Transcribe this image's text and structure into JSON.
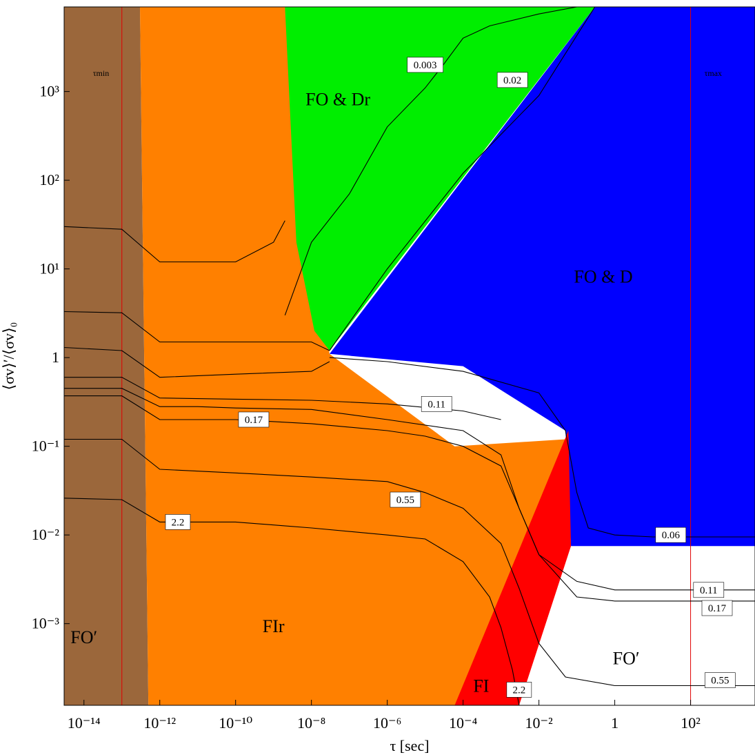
{
  "chart_data": {
    "type": "contour",
    "xlabel": "τ [sec]",
    "ylabel": "⟨σv⟩′/⟨σv⟩₀",
    "xscale": "log",
    "yscale": "log",
    "xlim": [
      3e-15,
      5000
    ],
    "ylim": [
      0.00012,
      9000
    ],
    "x_ticks": [
      {
        "value": 1e-14,
        "label": "10⁻¹⁴"
      },
      {
        "value": 1e-12,
        "label": "10⁻¹²"
      },
      {
        "value": 1e-10,
        "label": "10⁻¹⁰"
      },
      {
        "value": 1e-08,
        "label": "10⁻⁸"
      },
      {
        "value": 1e-06,
        "label": "10⁻⁶"
      },
      {
        "value": 0.0001,
        "label": "10⁻⁴"
      },
      {
        "value": 0.01,
        "label": "10⁻²"
      },
      {
        "value": 1,
        "label": "1"
      },
      {
        "value": 100,
        "label": "10²"
      }
    ],
    "y_ticks": [
      {
        "value": 0.001,
        "label": "10⁻³"
      },
      {
        "value": 0.01,
        "label": "10⁻²"
      },
      {
        "value": 0.1,
        "label": "10⁻¹"
      },
      {
        "value": 1,
        "label": "1"
      },
      {
        "value": 10,
        "label": "10¹"
      },
      {
        "value": 100,
        "label": "10²"
      },
      {
        "value": 1000,
        "label": "10³"
      }
    ],
    "colors": {
      "FO_prime": "#9b673b",
      "FI_r": "#ff8000",
      "FO_D_r": "#00ee00",
      "FO_D": "#0000ff",
      "FI": "#ff0000",
      "tau_line": "#e00000",
      "contour": "#000000"
    },
    "regions": [
      {
        "name": "FO′",
        "boundary": [
          [
            3e-15,
            9000
          ],
          [
            3e-13,
            9000
          ],
          [
            5e-13,
            0.00012
          ],
          [
            3e-15,
            0.00012
          ]
        ]
      },
      {
        "name": "FI_r",
        "boundary": [
          [
            3e-13,
            9000
          ],
          [
            2e-09,
            9000
          ],
          [
            3e-08,
            1.1
          ],
          [
            6e-05,
            0.1
          ],
          [
            0.05,
            0.12
          ],
          [
            0.07,
            0.01
          ],
          [
            6e-05,
            0.00012
          ],
          [
            5e-13,
            0.00012
          ]
        ]
      },
      {
        "name": "FO & D_r",
        "boundary": [
          [
            2e-09,
            9000
          ],
          [
            0.3,
            9000
          ],
          [
            3e-08,
            1.2
          ],
          [
            1.2e-08,
            2
          ],
          [
            4e-09,
            20
          ],
          [
            2e-09,
            9000
          ]
        ]
      },
      {
        "name": "FO & D",
        "boundary": [
          [
            0.3,
            9000
          ],
          [
            5000,
            9000
          ],
          [
            5000,
            0.0075
          ],
          [
            0.07,
            0.0075
          ],
          [
            0.05,
            0.15
          ],
          [
            0.0001,
            0.8
          ],
          [
            3e-08,
            1.1
          ]
        ]
      },
      {
        "name": "FI",
        "boundary": [
          [
            6e-05,
            0.00012
          ],
          [
            0.06,
            0.15
          ],
          [
            0.07,
            0.0075
          ],
          [
            0.003,
            0.00012
          ]
        ]
      }
    ],
    "region_labels": [
      {
        "text": "FO′",
        "x": 1e-14,
        "y": 0.0006
      },
      {
        "text": "FIr",
        "x": 1e-09,
        "y": 0.0008
      },
      {
        "text": "FO & Dr",
        "x": 5e-08,
        "y": 700
      },
      {
        "text": "FO & D",
        "x": 0.5,
        "y": 7
      },
      {
        "text": "FO′",
        "x": 2,
        "y": 0.00035
      },
      {
        "text": "FI",
        "x": 0.0003,
        "y": 0.00017
      }
    ],
    "vertical_lines": [
      {
        "label": "τmin",
        "x": 1e-13
      },
      {
        "label": "τmax",
        "x": 100
      }
    ],
    "contours": [
      {
        "label": "0.003",
        "points": [
          [
            2e-09,
            3
          ],
          [
            1e-08,
            20
          ],
          [
            1e-07,
            70
          ],
          [
            1e-06,
            400
          ],
          [
            1e-05,
            1100
          ],
          [
            3e-05,
            2000
          ],
          [
            0.0001,
            4000
          ],
          [
            0.0005,
            5500
          ],
          [
            0.01,
            7500
          ],
          [
            0.1,
            9000
          ]
        ]
      },
      {
        "label": "0.02",
        "points": [
          [
            3e-08,
            1.2
          ],
          [
            1e-06,
            10
          ],
          [
            0.0001,
            120
          ],
          [
            0.01,
            900
          ],
          [
            0.3,
            9000
          ]
        ]
      },
      {
        "label": "0.06",
        "points": [
          [
            3e-08,
            1.0
          ],
          [
            1e-06,
            0.9
          ],
          [
            0.0001,
            0.7
          ],
          [
            0.01,
            0.4
          ],
          [
            0.05,
            0.15
          ],
          [
            0.1,
            0.03
          ],
          [
            0.2,
            0.012
          ],
          [
            1,
            0.01
          ],
          [
            10,
            0.0095
          ],
          [
            100,
            0.0095
          ],
          [
            5000,
            0.0095
          ]
        ]
      },
      {
        "label": "0.11",
        "points": [
          [
            3e-15,
            0.45
          ],
          [
            1e-13,
            0.45
          ],
          [
            1e-12,
            0.28
          ],
          [
            1e-11,
            0.28
          ],
          [
            1e-10,
            0.27
          ],
          [
            1e-08,
            0.26
          ],
          [
            1e-06,
            0.2
          ],
          [
            0.0001,
            0.15
          ],
          [
            0.001,
            0.08
          ],
          [
            0.003,
            0.02
          ],
          [
            0.01,
            0.006
          ],
          [
            0.1,
            0.003
          ],
          [
            1,
            0.0024
          ],
          [
            100,
            0.0024
          ],
          [
            5000,
            0.0024
          ]
        ]
      },
      {
        "label": "0.17",
        "points": [
          [
            3e-15,
            0.37
          ],
          [
            1e-13,
            0.37
          ],
          [
            1e-12,
            0.2
          ],
          [
            1e-10,
            0.2
          ],
          [
            1e-08,
            0.18
          ],
          [
            1e-06,
            0.15
          ],
          [
            1e-05,
            0.13
          ],
          [
            0.0001,
            0.1
          ],
          [
            0.001,
            0.06
          ],
          [
            0.003,
            0.02
          ],
          [
            0.01,
            0.006
          ],
          [
            0.1,
            0.002
          ],
          [
            1,
            0.0018
          ],
          [
            100,
            0.0018
          ],
          [
            5000,
            0.0018
          ]
        ]
      },
      {
        "label": "0.55",
        "points": [
          [
            3e-15,
            0.12
          ],
          [
            1e-13,
            0.12
          ],
          [
            1e-12,
            0.055
          ],
          [
            1e-10,
            0.05
          ],
          [
            1e-08,
            0.045
          ],
          [
            1e-06,
            0.04
          ],
          [
            1e-05,
            0.03
          ],
          [
            0.0001,
            0.02
          ],
          [
            0.001,
            0.008
          ],
          [
            0.003,
            0.0025
          ],
          [
            0.01,
            0.0006
          ],
          [
            0.05,
            0.00025
          ],
          [
            1,
            0.0002
          ],
          [
            100,
            0.0002
          ],
          [
            5000,
            0.0002
          ]
        ]
      },
      {
        "label": "2.2",
        "points": [
          [
            3e-15,
            0.026
          ],
          [
            1e-13,
            0.025
          ],
          [
            1e-12,
            0.014
          ],
          [
            1e-10,
            0.014
          ],
          [
            1e-08,
            0.012
          ],
          [
            1e-06,
            0.01
          ],
          [
            1e-05,
            0.009
          ],
          [
            0.0001,
            0.005
          ],
          [
            0.0005,
            0.002
          ],
          [
            0.001,
            0.0009
          ],
          [
            0.002,
            0.0003
          ],
          [
            0.003,
            0.00012
          ]
        ]
      },
      {
        "label": "",
        "points": [
          [
            3e-15,
            30
          ],
          [
            1e-13,
            28
          ],
          [
            1e-12,
            12
          ],
          [
            1e-10,
            12
          ],
          [
            1e-09,
            20
          ],
          [
            2e-09,
            35
          ]
        ]
      },
      {
        "label": "",
        "points": [
          [
            3e-15,
            3.3
          ],
          [
            1e-13,
            3.2
          ],
          [
            1e-12,
            1.5
          ],
          [
            1e-10,
            1.5
          ],
          [
            1e-08,
            1.5
          ],
          [
            3e-08,
            1.2
          ]
        ]
      },
      {
        "label": "",
        "points": [
          [
            3e-15,
            1.3
          ],
          [
            1e-13,
            1.2
          ],
          [
            1e-12,
            0.6
          ],
          [
            1e-10,
            0.65
          ],
          [
            1e-08,
            0.7
          ],
          [
            3e-08,
            0.9
          ]
        ]
      },
      {
        "label": "",
        "points": [
          [
            3e-15,
            0.6
          ],
          [
            1e-13,
            0.6
          ],
          [
            1e-12,
            0.35
          ],
          [
            1e-10,
            0.34
          ],
          [
            1e-08,
            0.33
          ],
          [
            1e-06,
            0.3
          ],
          [
            0.0001,
            0.25
          ],
          [
            0.001,
            0.2
          ]
        ]
      }
    ],
    "contour_labels": [
      {
        "text": "0.003",
        "x": 1e-05,
        "y": 2000
      },
      {
        "text": "0.02",
        "x": 0.002,
        "y": 1350
      },
      {
        "text": "0.11",
        "x": 2e-05,
        "y": 0.3
      },
      {
        "text": "0.17",
        "x": 3e-10,
        "y": 0.2
      },
      {
        "text": "0.55",
        "x": 3e-06,
        "y": 0.025
      },
      {
        "text": "2.2",
        "x": 3e-12,
        "y": 0.014
      },
      {
        "text": "0.06",
        "x": 30,
        "y": 0.01
      },
      {
        "text": "0.11",
        "x": 300,
        "y": 0.0024
      },
      {
        "text": "0.17",
        "x": 500,
        "y": 0.0015
      },
      {
        "text": "0.55",
        "x": 600,
        "y": 0.00023
      },
      {
        "text": "2.2",
        "x": 0.003,
        "y": 0.00018
      }
    ]
  }
}
